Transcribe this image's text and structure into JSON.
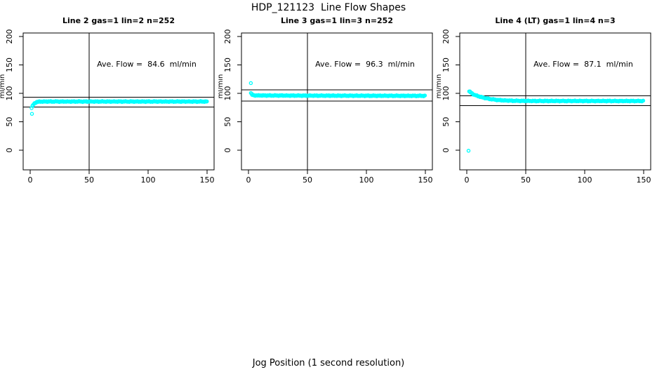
{
  "figure": {
    "title": "HDP_121123  Line Flow Shapes",
    "xlabel": "Jog Position (1 second resolution)",
    "ylabel": "ml/min",
    "point_color": "#00FFFF",
    "axis_color": "#000000",
    "background": "#FFFFFF"
  },
  "chart_data": [
    {
      "type": "scatter",
      "title": "Line 2 gas=1 lin=2 n=252",
      "annotation": "Ave. Flow =  84.6  ml/min",
      "ave_flow_ml_min": 84.6,
      "n_points": 252,
      "ylabel": "ml/min",
      "x_ticks": [
        0,
        50,
        100,
        150
      ],
      "y_ticks": [
        0,
        50,
        100,
        150,
        200
      ],
      "xlim": [
        0,
        150
      ],
      "ylim": [
        0,
        200
      ],
      "ref_lines_y": [
        93.1,
        76.1
      ],
      "ref_line_x": 50,
      "series_profile": {
        "x": [
          1.2,
          2,
          3,
          4,
          5,
          6,
          8,
          10,
          15,
          25,
          50,
          100,
          150
        ],
        "y": [
          74,
          78,
          81,
          83,
          84.3,
          85,
          85.4,
          85.5,
          85.6,
          85.6,
          85.6,
          85.6,
          85.6
        ]
      },
      "outliers": [
        [
          1.5,
          64
        ]
      ]
    },
    {
      "type": "scatter",
      "title": "Line 3 gas=1 lin=3 n=252",
      "annotation": "Ave. Flow =  96.3  ml/min",
      "ave_flow_ml_min": 96.3,
      "n_points": 252,
      "ylabel": "ml/min",
      "x_ticks": [
        0,
        50,
        100,
        150
      ],
      "y_ticks": [
        0,
        50,
        100,
        150,
        200
      ],
      "xlim": [
        0,
        150
      ],
      "ylim": [
        0,
        200
      ],
      "ref_lines_y": [
        105.9,
        86.7
      ],
      "ref_line_x": 50,
      "series_profile": {
        "x": [
          2,
          2.6,
          3.2,
          4,
          5,
          7,
          10,
          20,
          50,
          100,
          150
        ],
        "y": [
          100.5,
          98.5,
          97.3,
          96.7,
          96.4,
          96.3,
          96.3,
          96.2,
          96.0,
          95.8,
          95.6
        ]
      },
      "outliers": [
        [
          2,
          118
        ]
      ]
    },
    {
      "type": "scatter",
      "title": "Line 4 (LT) gas=1 lin=4 n=3",
      "annotation": "Ave. Flow =  87.1  ml/min",
      "ave_flow_ml_min": 87.1,
      "n_points": 3,
      "ylabel": "ml/min",
      "x_ticks": [
        0,
        50,
        100,
        150
      ],
      "y_ticks": [
        0,
        50,
        100,
        150,
        200
      ],
      "xlim": [
        0,
        150
      ],
      "ylim": [
        0,
        200
      ],
      "ref_lines_y": [
        95.8,
        78.4
      ],
      "ref_line_x": 50,
      "series_profile": {
        "x": [
          2,
          3,
          4,
          5,
          7,
          10,
          13,
          16,
          20,
          25,
          30,
          40,
          55,
          150
        ],
        "y": [
          103.5,
          102,
          100.5,
          99,
          97,
          94.8,
          93,
          91.5,
          90,
          88.6,
          87.7,
          86.9,
          86.6,
          86.5
        ]
      },
      "outliers": [
        [
          1.5,
          -1
        ]
      ]
    }
  ]
}
